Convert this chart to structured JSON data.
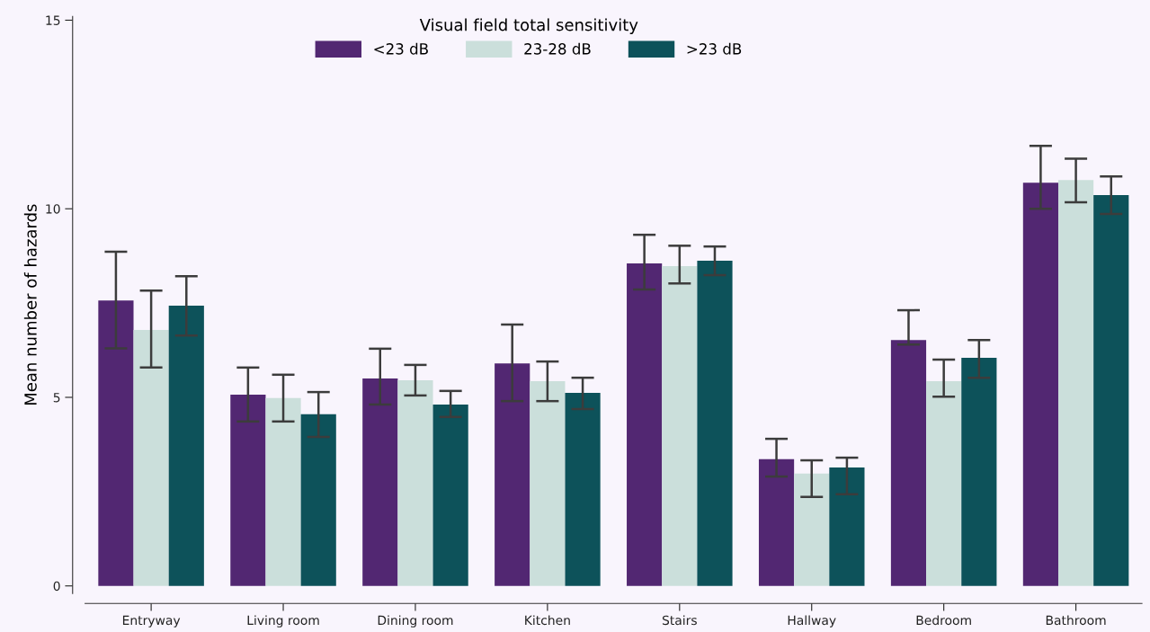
{
  "chart_data": {
    "type": "bar",
    "ylabel": "Mean number of hazards",
    "legend_title": "Visual field total sensitivity",
    "legend": "top",
    "categories": [
      "Entryway",
      "Living room",
      "Dining room",
      "Kitchen",
      "Stairs",
      "Hallway",
      "Bedroom",
      "Bathroom"
    ],
    "ylim": [
      -0.2,
      15.1
    ],
    "yticks": [
      0,
      5,
      10,
      15
    ],
    "grid": false,
    "series": [
      {
        "name": "<23 dB",
        "color": "#522772",
        "values": [
          7.57,
          5.07,
          5.5,
          5.9,
          8.55,
          3.36,
          6.52,
          10.69
        ],
        "errors": [
          [
            6.3,
            8.86
          ],
          [
            4.36,
            5.79
          ],
          [
            4.81,
            6.29
          ],
          [
            4.9,
            6.93
          ],
          [
            7.86,
            9.31
          ],
          [
            2.9,
            3.9
          ],
          [
            6.4,
            7.31
          ],
          [
            10.0,
            11.67
          ]
        ]
      },
      {
        "name": "23-28 dB",
        "color": "#cbdfdb",
        "values": [
          6.79,
          4.98,
          5.45,
          5.43,
          8.48,
          2.98,
          5.43,
          10.76
        ],
        "errors": [
          [
            5.79,
            7.83
          ],
          [
            4.36,
            5.6
          ],
          [
            5.05,
            5.86
          ],
          [
            4.9,
            5.95
          ],
          [
            8.02,
            9.02
          ],
          [
            2.36,
            3.33
          ],
          [
            5.02,
            6.0
          ],
          [
            10.17,
            11.33
          ]
        ]
      },
      {
        "name": ">23 dB",
        "color": "#0d525a",
        "values": [
          7.43,
          4.55,
          4.81,
          5.12,
          8.62,
          3.14,
          6.05,
          10.36
        ],
        "errors": [
          [
            6.64,
            8.21
          ],
          [
            3.95,
            5.14
          ],
          [
            4.48,
            5.17
          ],
          [
            4.69,
            5.52
          ],
          [
            8.24,
            9.0
          ],
          [
            2.43,
            3.4
          ],
          [
            5.52,
            6.52
          ],
          [
            9.86,
            10.86
          ]
        ]
      }
    ]
  }
}
